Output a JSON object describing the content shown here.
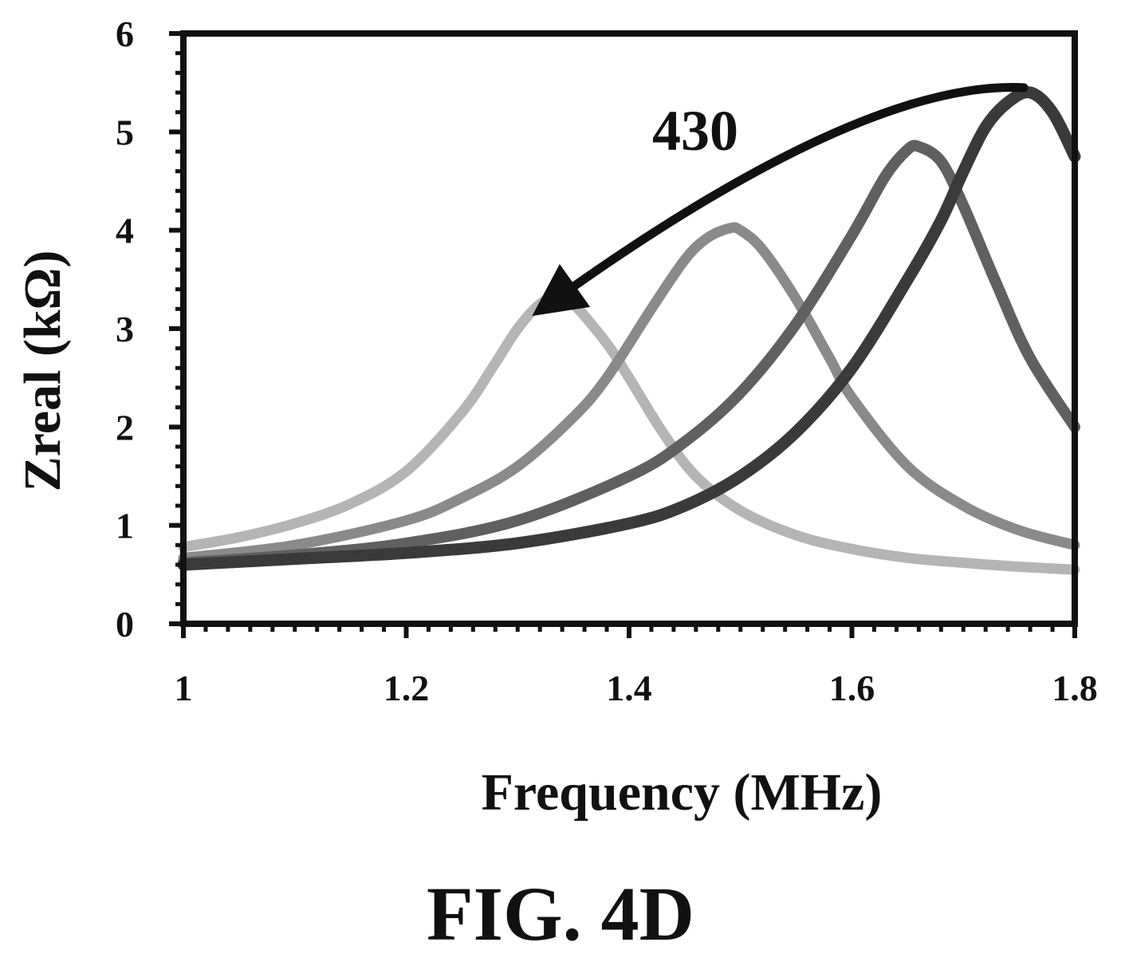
{
  "figure_label": "FIG. 4D",
  "chart_data": {
    "type": "line",
    "title": "",
    "xlabel": "Frequency (MHz)",
    "ylabel": "Zreal (kΩ)",
    "xlim": [
      1,
      1.8
    ],
    "ylim": [
      0,
      6
    ],
    "xticks": [
      "1",
      "1.2",
      "1.4",
      "1.6",
      "1.8"
    ],
    "yticks": [
      "0",
      "1",
      "2",
      "3",
      "4",
      "5",
      "6"
    ],
    "grid": false,
    "annotations": [
      {
        "text": "430",
        "arrow_from": [
          1.74,
          5.45
        ],
        "arrow_to": [
          1.33,
          3.4
        ]
      }
    ],
    "series": [
      {
        "color": "#b5b5b5",
        "stroke_width": 13,
        "x": [
          1.0,
          1.05,
          1.1,
          1.15,
          1.2,
          1.25,
          1.28,
          1.3,
          1.32,
          1.335,
          1.35,
          1.38,
          1.4,
          1.43,
          1.46,
          1.5,
          1.55,
          1.6,
          1.65,
          1.7,
          1.75,
          1.8
        ],
        "y": [
          0.78,
          0.88,
          1.02,
          1.22,
          1.55,
          2.15,
          2.65,
          3.0,
          3.25,
          3.32,
          3.25,
          2.85,
          2.5,
          1.95,
          1.5,
          1.15,
          0.9,
          0.76,
          0.67,
          0.62,
          0.58,
          0.55
        ]
      },
      {
        "color": "#8a8a8a",
        "stroke_width": 13,
        "x": [
          1.0,
          1.1,
          1.2,
          1.25,
          1.3,
          1.35,
          1.38,
          1.42,
          1.45,
          1.47,
          1.49,
          1.5,
          1.52,
          1.55,
          1.58,
          1.6,
          1.65,
          1.7,
          1.75,
          1.8
        ],
        "y": [
          0.67,
          0.8,
          1.05,
          1.28,
          1.6,
          2.1,
          2.5,
          3.2,
          3.7,
          3.92,
          4.02,
          4.0,
          3.8,
          3.3,
          2.7,
          2.3,
          1.6,
          1.2,
          0.95,
          0.8
        ]
      },
      {
        "color": "#606060",
        "stroke_width": 14,
        "x": [
          1.0,
          1.1,
          1.2,
          1.3,
          1.4,
          1.45,
          1.5,
          1.55,
          1.6,
          1.63,
          1.65,
          1.66,
          1.68,
          1.7,
          1.73,
          1.76,
          1.8
        ],
        "y": [
          0.62,
          0.7,
          0.82,
          1.05,
          1.5,
          1.85,
          2.35,
          3.05,
          3.95,
          4.55,
          4.82,
          4.85,
          4.7,
          4.25,
          3.45,
          2.7,
          2.0
        ]
      },
      {
        "color": "#3a3a3a",
        "stroke_width": 15,
        "x": [
          1.0,
          1.1,
          1.2,
          1.3,
          1.4,
          1.45,
          1.5,
          1.55,
          1.6,
          1.65,
          1.68,
          1.7,
          1.72,
          1.74,
          1.76,
          1.78,
          1.8
        ],
        "y": [
          0.6,
          0.66,
          0.72,
          0.82,
          1.02,
          1.2,
          1.5,
          1.95,
          2.6,
          3.5,
          4.1,
          4.6,
          5.05,
          5.3,
          5.4,
          5.2,
          4.75
        ]
      }
    ]
  }
}
